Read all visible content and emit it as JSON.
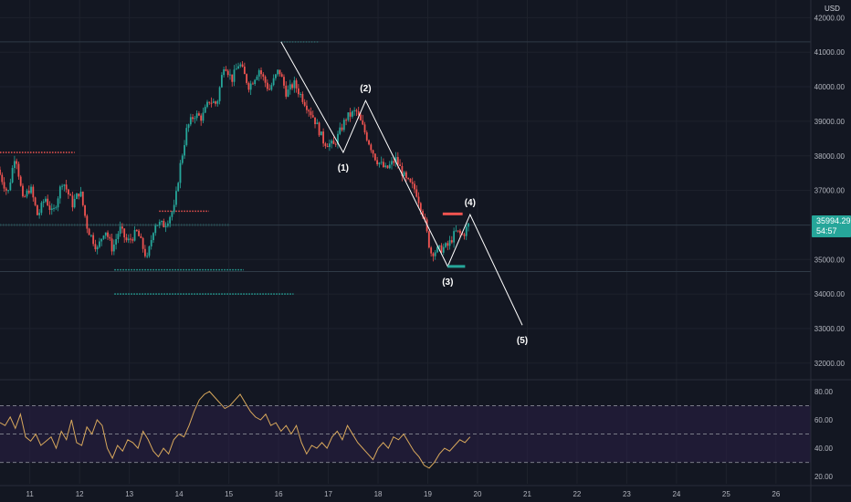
{
  "currency": "USD",
  "price_label": {
    "price": "35994.29",
    "countdown": "54:57"
  },
  "chart_data": [
    {
      "type": "candlestick",
      "title": "",
      "y_unit": "USD",
      "yaxis_ticks": [
        {
          "value": 42000,
          "label": "42000.00"
        },
        {
          "value": 41000,
          "label": "41000.00"
        },
        {
          "value": 40000,
          "label": "40000.00"
        },
        {
          "value": 39000,
          "label": "39000.00"
        },
        {
          "value": 38000,
          "label": "38000.00"
        },
        {
          "value": 37000,
          "label": "37000.00"
        },
        {
          "value": 35000,
          "label": "35000.00"
        },
        {
          "value": 34000,
          "label": "34000.00"
        },
        {
          "value": 33000,
          "label": "33000.00"
        },
        {
          "value": 32000,
          "label": "32000.00"
        }
      ],
      "xaxis_ticks": [
        "11",
        "12",
        "13",
        "14",
        "15",
        "16",
        "17",
        "18",
        "19",
        "20",
        "21",
        "22",
        "23",
        "24",
        "25",
        "26"
      ],
      "x_range_days": [
        10.4,
        26.7
      ],
      "y_range": [
        31600,
        42300
      ],
      "colors": {
        "up": "#26a69a",
        "down": "#ef5350",
        "grid": "#1e222d",
        "wave": "#ffffff"
      },
      "last_price": 35994.29,
      "price_path": [
        [
          10.4,
          37600
        ],
        [
          10.6,
          36900
        ],
        [
          10.75,
          38100
        ],
        [
          10.9,
          36700
        ],
        [
          11.05,
          37100
        ],
        [
          11.2,
          36250
        ],
        [
          11.35,
          36800
        ],
        [
          11.5,
          36300
        ],
        [
          11.7,
          37300
        ],
        [
          11.9,
          36600
        ],
        [
          12.05,
          37000
        ],
        [
          12.2,
          35900
        ],
        [
          12.4,
          35300
        ],
        [
          12.55,
          35900
        ],
        [
          12.7,
          35300
        ],
        [
          12.85,
          35900
        ],
        [
          13.0,
          35500
        ],
        [
          13.2,
          35800
        ],
        [
          13.4,
          35000
        ],
        [
          13.55,
          36050
        ],
        [
          13.75,
          36000
        ],
        [
          13.95,
          36500
        ],
        [
          14.05,
          37600
        ],
        [
          14.2,
          38800
        ],
        [
          14.35,
          39200
        ],
        [
          14.5,
          39100
        ],
        [
          14.65,
          39600
        ],
        [
          14.8,
          39500
        ],
        [
          14.95,
          40700
        ],
        [
          15.1,
          40200
        ],
        [
          15.25,
          40700
        ],
        [
          15.45,
          40000
        ],
        [
          15.65,
          40500
        ],
        [
          15.85,
          39900
        ],
        [
          16.05,
          40500
        ],
        [
          16.2,
          39800
        ],
        [
          16.35,
          40100
        ],
        [
          16.55,
          39600
        ],
        [
          16.75,
          39100
        ],
        [
          16.95,
          38400
        ],
        [
          17.15,
          38300
        ],
        [
          17.4,
          39100
        ],
        [
          17.6,
          39300
        ],
        [
          17.8,
          38600
        ],
        [
          18.0,
          37900
        ],
        [
          18.2,
          37600
        ],
        [
          18.4,
          37900
        ],
        [
          18.6,
          37300
        ],
        [
          18.8,
          37000
        ],
        [
          18.95,
          36300
        ],
        [
          19.1,
          35200
        ],
        [
          19.3,
          35300
        ],
        [
          19.45,
          35400
        ],
        [
          19.6,
          35800
        ],
        [
          19.75,
          35700
        ],
        [
          19.85,
          35994
        ]
      ],
      "levels": [
        {
          "value": 41300,
          "from": 16.05,
          "to": 16.8
        },
        {
          "value": 38100,
          "from": 10.4,
          "to": 11.9,
          "down": true
        },
        {
          "value": 36400,
          "from": 13.6,
          "to": 14.6,
          "down": true
        },
        {
          "value": 36000,
          "from": 10.4,
          "to": 15.0
        },
        {
          "value": 34700,
          "from": 12.7,
          "to": 15.3
        },
        {
          "value": 34000,
          "from": 12.7,
          "to": 16.3
        }
      ],
      "horizontal_lines": [
        41300,
        35994,
        34650
      ],
      "wave_points": [
        {
          "label": "",
          "x": 16.05,
          "y": 41300
        },
        {
          "label": "(1)",
          "x": 17.3,
          "y": 38100
        },
        {
          "label": "(2)",
          "x": 17.75,
          "y": 39600
        },
        {
          "label": "(3)",
          "x": 19.4,
          "y": 34800
        },
        {
          "label": "(4)",
          "x": 19.85,
          "y": 36300
        },
        {
          "label": "(5)",
          "x": 20.9,
          "y": 33100
        }
      ],
      "markers": [
        {
          "color": "#ef5350",
          "value": 36320,
          "from": 19.3,
          "to": 19.7
        },
        {
          "color": "#26a69a",
          "value": 34800,
          "from": 19.4,
          "to": 19.75
        }
      ]
    },
    {
      "type": "line",
      "title": "",
      "yaxis_ticks": [
        80,
        60,
        40,
        20
      ],
      "y_range": [
        15,
        87
      ],
      "band": [
        30,
        70
      ],
      "midline": 50,
      "colors": {
        "line": "#d8a85c",
        "band": "#2a1f45",
        "dashes": "#868993"
      },
      "series": [
        {
          "values": [
            58,
            56,
            62,
            54,
            64,
            48,
            45,
            50,
            42,
            45,
            48,
            40,
            52,
            46,
            60,
            44,
            42,
            55,
            50,
            60,
            56,
            40,
            33,
            42,
            38,
            46,
            44,
            40,
            52,
            46,
            38,
            34,
            40,
            36,
            46,
            50,
            48,
            56,
            66,
            74,
            78,
            80,
            76,
            72,
            68,
            70,
            74,
            78,
            72,
            66,
            62,
            60,
            64,
            56,
            58,
            52,
            56,
            50,
            56,
            44,
            36,
            42,
            40,
            44,
            40,
            48,
            52,
            46,
            56,
            50,
            44,
            40,
            36,
            32,
            40,
            44,
            40,
            48,
            46,
            50,
            44,
            38,
            34,
            28,
            26,
            30,
            36,
            40,
            38,
            42,
            46,
            44,
            48
          ]
        }
      ]
    }
  ]
}
